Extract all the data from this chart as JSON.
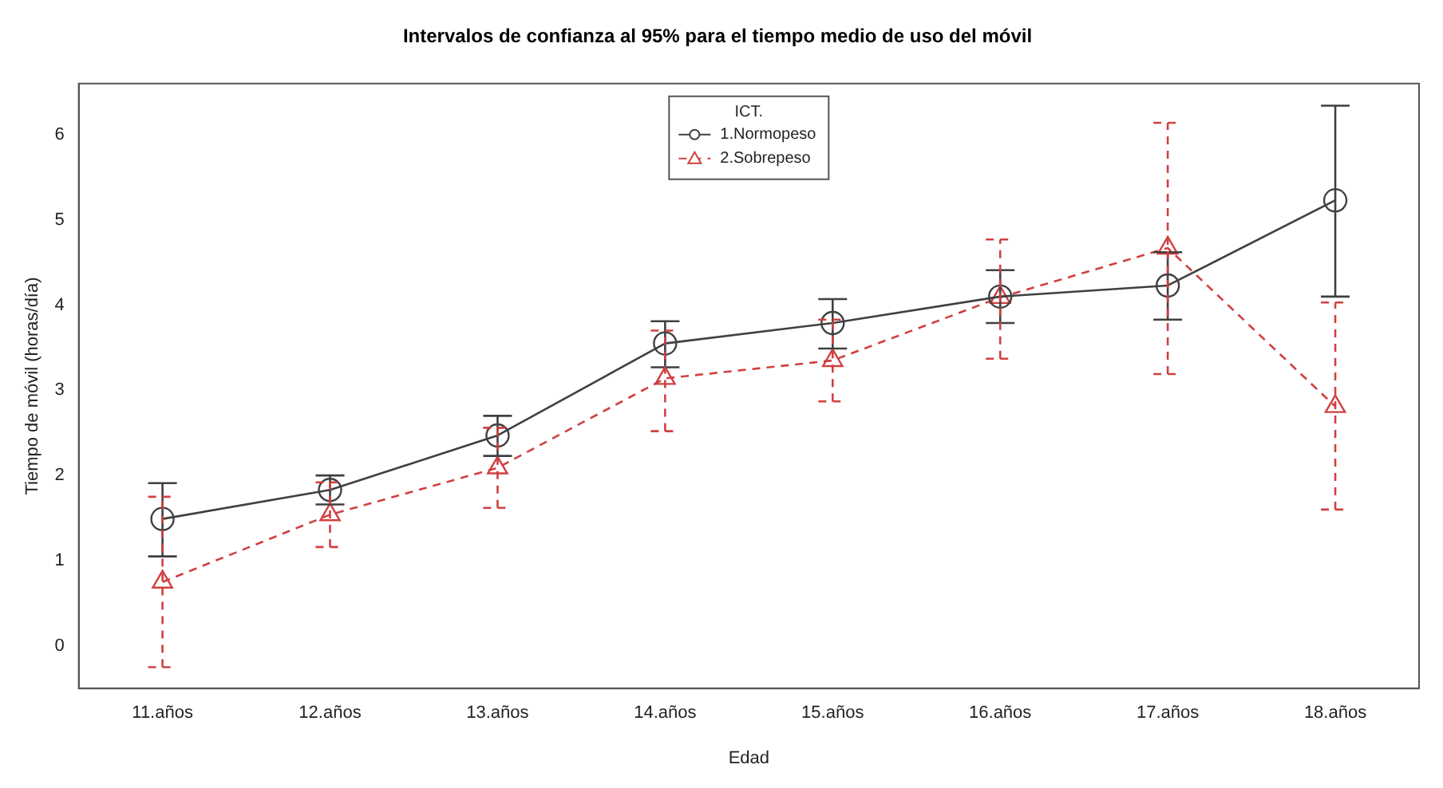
{
  "chart_data": {
    "type": "line",
    "title": "Intervalos de confianza al 95% para el tiempo medio de uso del móvil",
    "xlabel": "Edad",
    "ylabel": "Tiempo de móvil (horas/día)",
    "legend_title": "ICT.",
    "legend": "top",
    "categories": [
      "11.años",
      "12.años",
      "13.años",
      "14.años",
      "15.años",
      "16.años",
      "17.años",
      "18.años"
    ],
    "ylim": [
      -0.5,
      6.6
    ],
    "yticks": [
      0,
      1,
      2,
      3,
      4,
      5,
      6
    ],
    "grid": false,
    "series": [
      {
        "name": "1.Normopeso",
        "color": "#404040",
        "marker": "circle",
        "line_style": "solid",
        "values": [
          1.49,
          1.83,
          2.47,
          3.55,
          3.79,
          4.1,
          4.23,
          5.23
        ],
        "errors": [
          [
            1.05,
            1.91
          ],
          [
            1.66,
            2.0
          ],
          [
            2.23,
            2.7
          ],
          [
            3.27,
            3.81
          ],
          [
            3.49,
            4.07
          ],
          [
            3.79,
            4.41
          ],
          [
            3.83,
            4.62
          ],
          [
            4.1,
            6.34
          ]
        ]
      },
      {
        "name": "2.Sobrepeso",
        "color": "#d04040",
        "marker": "triangle",
        "line_style": "dashed",
        "values": [
          0.75,
          1.54,
          2.09,
          3.14,
          3.35,
          4.09,
          4.67,
          2.81
        ],
        "errors": [
          [
            -0.25,
            1.75
          ],
          [
            1.16,
            1.92
          ],
          [
            1.62,
            2.56
          ],
          [
            2.52,
            3.7
          ],
          [
            2.87,
            3.83
          ],
          [
            3.37,
            4.77
          ],
          [
            3.19,
            6.14
          ],
          [
            1.6,
            4.03
          ]
        ]
      }
    ]
  }
}
